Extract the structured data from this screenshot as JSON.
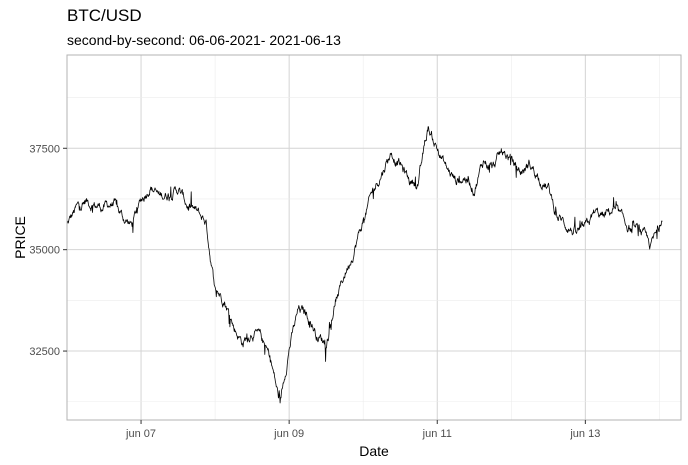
{
  "chart_data": {
    "type": "line",
    "title": "BTC/USD",
    "subtitle": "second-by-second: 06-06-2021- 2021-06-13",
    "xlabel": "Date",
    "ylabel": "PRICE",
    "xlim": [
      "2021-06-06T00:00",
      "2021-06-14T07:00"
    ],
    "ylim": [
      30800,
      39800
    ],
    "x_ticks": [
      "2021-06-07",
      "2021-06-09",
      "2021-06-11",
      "2021-06-13"
    ],
    "x_tick_labels": [
      "jun 07",
      "jun 09",
      "jun 11",
      "jun 13"
    ],
    "y_ticks": [
      32500,
      35000,
      37500
    ],
    "y_tick_labels": [
      "32500",
      "35000",
      "37500"
    ],
    "grid": true,
    "series": [
      {
        "x": [
          "2021-06-06T00:00",
          "2021-06-06T03:00",
          "2021-06-06T06:00",
          "2021-06-06T09:00",
          "2021-06-06T12:00",
          "2021-06-06T15:00",
          "2021-06-06T18:00",
          "2021-06-06T21:00",
          "2021-06-07T00:00",
          "2021-06-07T03:00",
          "2021-06-07T06:00",
          "2021-06-07T09:00",
          "2021-06-07T12:00",
          "2021-06-07T15:00",
          "2021-06-07T18:00",
          "2021-06-07T21:00",
          "2021-06-08T00:00",
          "2021-06-08T03:00",
          "2021-06-08T06:00",
          "2021-06-08T09:00",
          "2021-06-08T12:00",
          "2021-06-08T15:00",
          "2021-06-08T18:00",
          "2021-06-08T21:00",
          "2021-06-09T00:00",
          "2021-06-09T03:00",
          "2021-06-09T06:00",
          "2021-06-09T09:00",
          "2021-06-09T12:00",
          "2021-06-09T15:00",
          "2021-06-09T18:00",
          "2021-06-09T21:00",
          "2021-06-10T00:00",
          "2021-06-10T03:00",
          "2021-06-10T06:00",
          "2021-06-10T09:00",
          "2021-06-10T12:00",
          "2021-06-10T15:00",
          "2021-06-10T18:00",
          "2021-06-10T21:00",
          "2021-06-11T00:00",
          "2021-06-11T03:00",
          "2021-06-11T06:00",
          "2021-06-11T09:00",
          "2021-06-11T12:00",
          "2021-06-11T15:00",
          "2021-06-11T18:00",
          "2021-06-11T21:00",
          "2021-06-12T00:00",
          "2021-06-12T03:00",
          "2021-06-12T06:00",
          "2021-06-12T09:00",
          "2021-06-12T12:00",
          "2021-06-12T15:00",
          "2021-06-12T18:00",
          "2021-06-12T21:00",
          "2021-06-13T00:00",
          "2021-06-13T03:00",
          "2021-06-13T06:00",
          "2021-06-13T09:00",
          "2021-06-13T12:00",
          "2021-06-13T15:00",
          "2021-06-13T18:00",
          "2021-06-13T21:00",
          "2021-06-14T00:00",
          "2021-06-14T01:00"
        ],
        "values": [
          35600,
          36000,
          36200,
          36100,
          36050,
          36150,
          35800,
          35600,
          36200,
          36600,
          36300,
          36400,
          36500,
          36100,
          35900,
          35700,
          34000,
          33800,
          33100,
          32700,
          33000,
          32800,
          32300,
          31200,
          32600,
          33500,
          33400,
          32900,
          32700,
          33700,
          34400,
          35000,
          35700,
          36400,
          36900,
          37400,
          37100,
          36700,
          36700,
          38000,
          37500,
          37000,
          36700,
          36800,
          36500,
          37200,
          37000,
          37400,
          37200,
          36900,
          37100,
          36800,
          36500,
          35800,
          35600,
          35400,
          35500,
          35900,
          35800,
          36000,
          35700,
          35500,
          35400,
          35100,
          35500,
          35900
        ]
      }
    ]
  }
}
